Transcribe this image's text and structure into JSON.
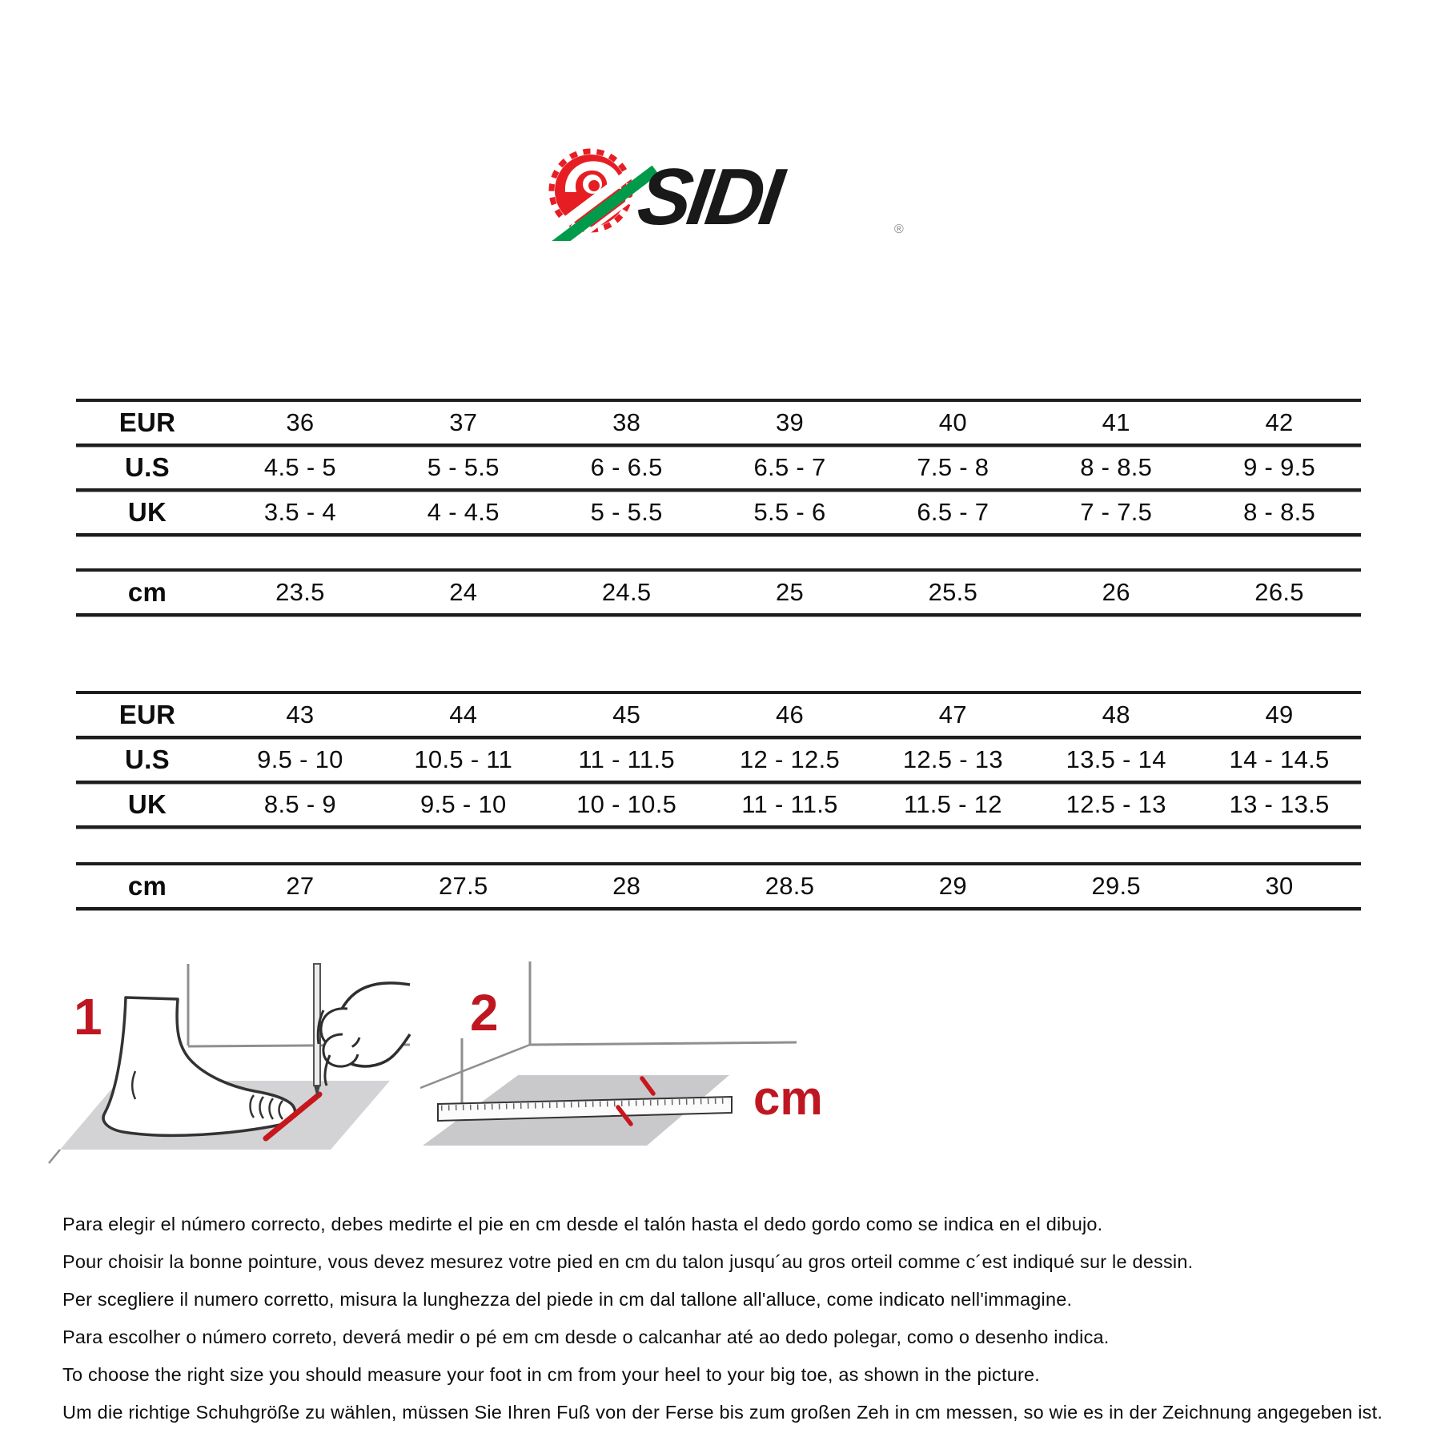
{
  "logo": {
    "brand": "SIDI",
    "registered_mark": "®",
    "swirl_red": "#e61e24",
    "stripe_green": "#009b4a",
    "text_color": "#191919"
  },
  "accent_red": "#bf1722",
  "table_line_color": "#1d1d1d",
  "size_chart": {
    "blocks": [
      {
        "name": "sizes-eur-36-42",
        "rows": [
          {
            "label": "EUR",
            "values": [
              "36",
              "37",
              "38",
              "39",
              "40",
              "41",
              "42"
            ]
          },
          {
            "label": "U.S",
            "values": [
              "4.5 - 5",
              "5 - 5.5",
              "6 - 6.5",
              "6.5 - 7",
              "7.5 - 8",
              "8 - 8.5",
              "9 - 9.5"
            ]
          },
          {
            "label": "UK",
            "values": [
              "3.5 - 4",
              "4 - 4.5",
              "5 - 5.5",
              "5.5 - 6",
              "6.5 - 7",
              "7 - 7.5",
              "8 - 8.5"
            ]
          }
        ]
      },
      {
        "name": "foot-length-cm-23-26",
        "rows": [
          {
            "label": "cm",
            "values": [
              "23.5",
              "24",
              "24.5",
              "25",
              "25.5",
              "26",
              "26.5"
            ]
          }
        ]
      },
      {
        "name": "sizes-eur-43-49",
        "rows": [
          {
            "label": "EUR",
            "values": [
              "43",
              "44",
              "45",
              "46",
              "47",
              "48",
              "49"
            ]
          },
          {
            "label": "U.S",
            "values": [
              "9.5 - 10",
              "10.5 - 11",
              "11 - 11.5",
              "12 - 12.5",
              "12.5 - 13",
              "13.5 - 14",
              "14 - 14.5"
            ]
          },
          {
            "label": "UK",
            "values": [
              "8.5 - 9",
              "9.5 - 10",
              "10 - 10.5",
              "11 - 11.5",
              "11.5 - 12",
              "12.5 - 13",
              "13 - 13.5"
            ]
          }
        ]
      },
      {
        "name": "foot-length-cm-27-30",
        "rows": [
          {
            "label": "cm",
            "values": [
              "27",
              "27.5",
              "28",
              "28.5",
              "29",
              "29.5",
              "30"
            ]
          }
        ]
      }
    ]
  },
  "diagrams": {
    "step1_label": "1",
    "step2_label": "2",
    "cm_label": "cm"
  },
  "instructions": {
    "lines": [
      "Para elegir el número correcto, debes medirte el pie en cm desde el talón hasta el dedo gordo como se indica en el dibujo.",
      "Pour choisir la bonne pointure, vous devez mesurez votre pied en cm du talon jusqu´au gros orteil comme c´est indiqué sur le dessin.",
      "Per scegliere il numero corretto, misura la lunghezza del piede in cm dal tallone all'alluce, come indicato nell'immagine.",
      "Para escolher o número correto, deverá medir o pé em cm desde o calcanhar até ao dedo polegar, como o desenho indica.",
      "To choose the right size you should measure your foot in cm from your heel to your big toe, as shown in the picture.",
      "Um die richtige Schuhgröße zu wählen, müssen Sie Ihren Fuß von der Ferse bis zum großen Zeh in cm messen, so wie es in der Zeichnung angegeben ist."
    ]
  }
}
